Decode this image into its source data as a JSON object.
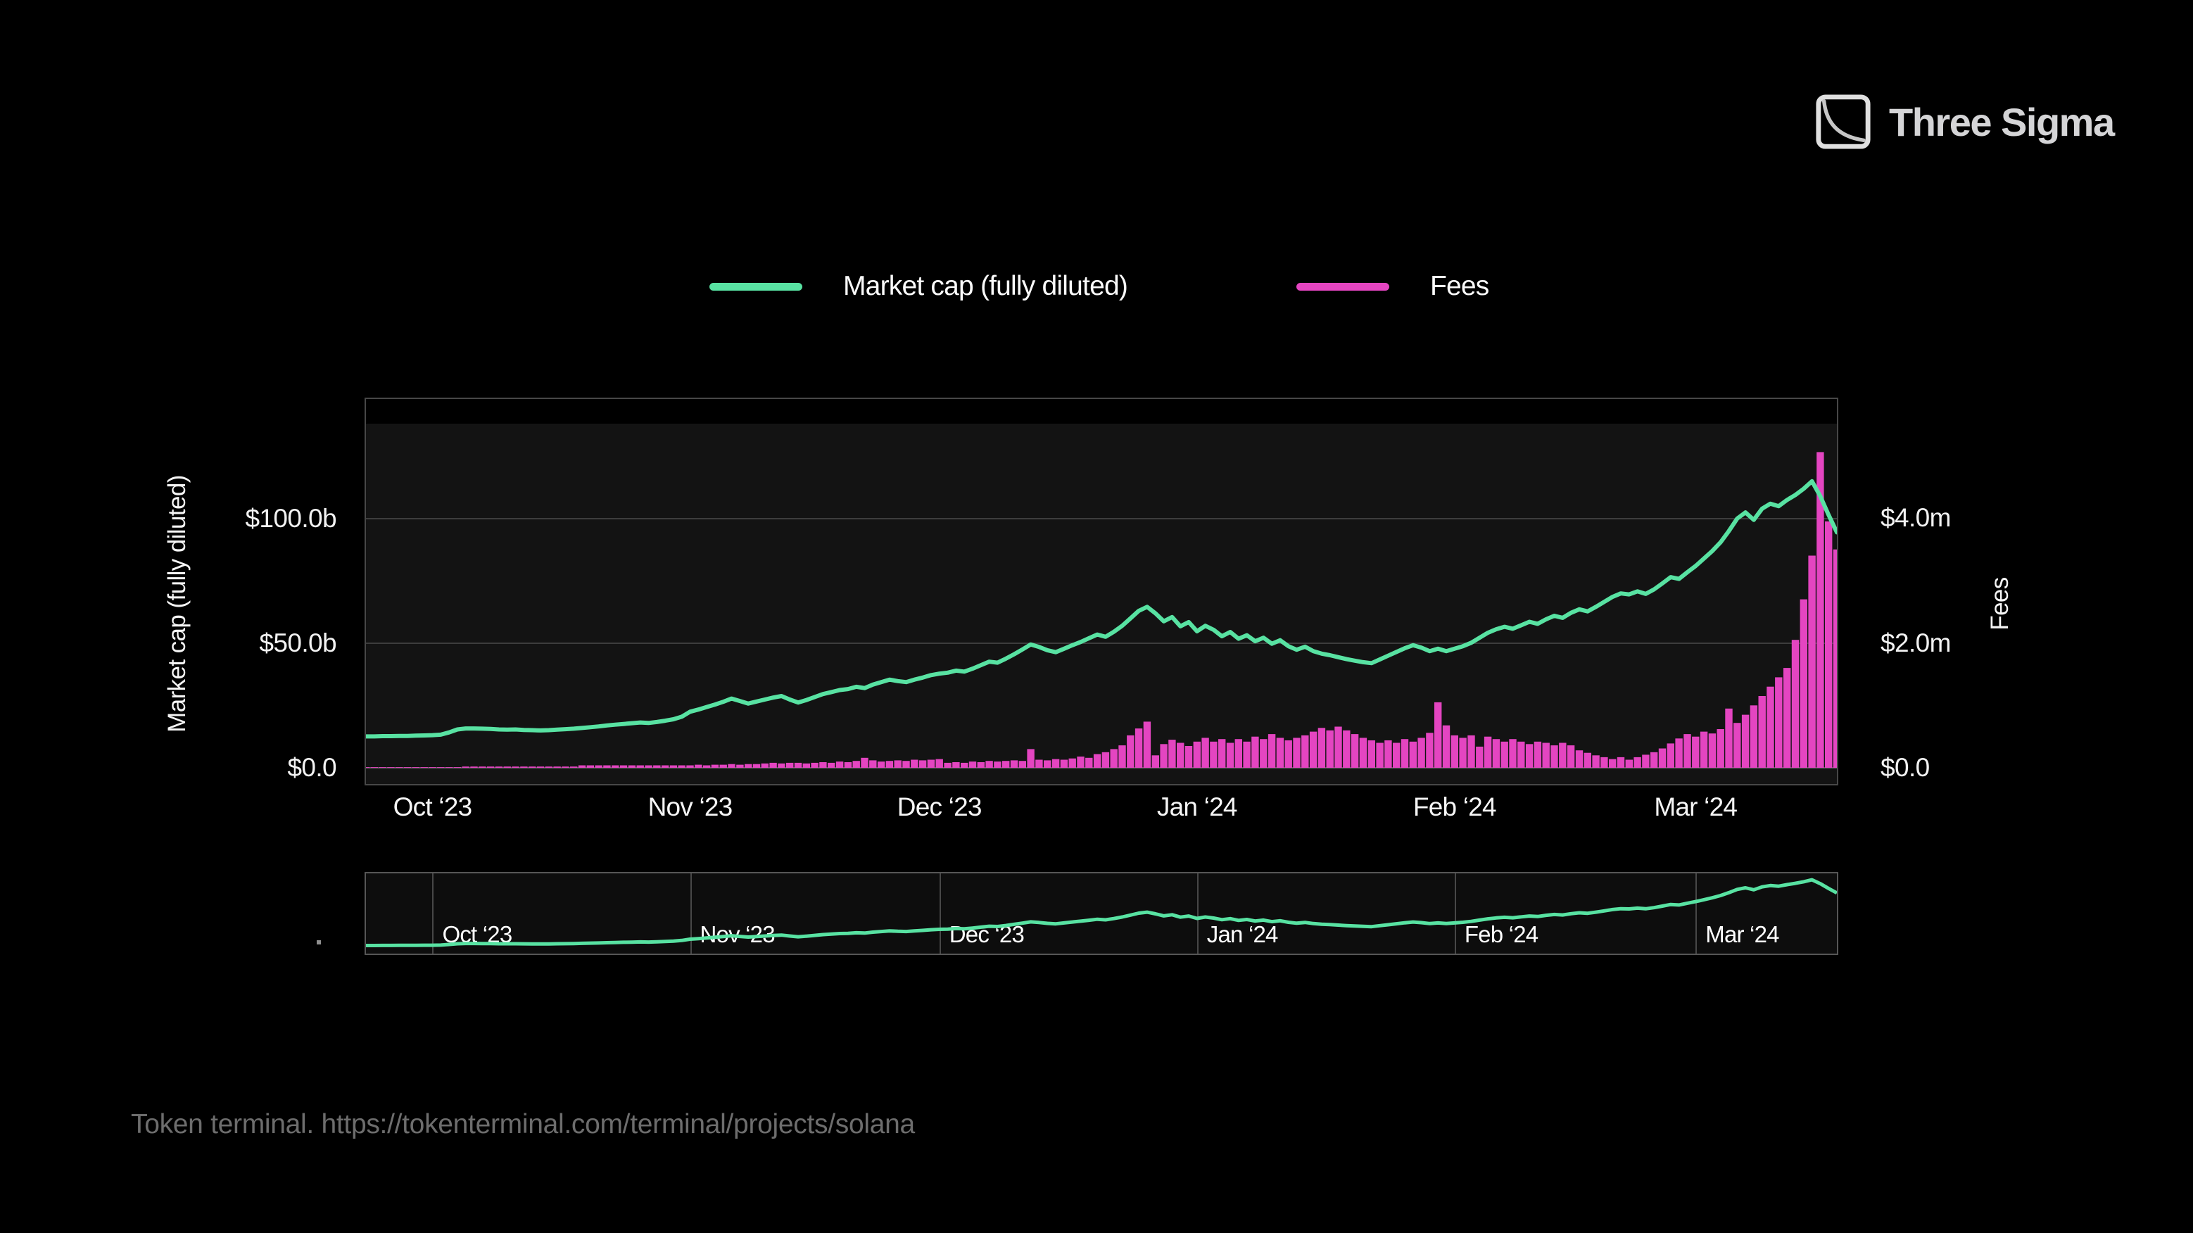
{
  "logo": {
    "text": "Three Sigma"
  },
  "legend": {
    "items": [
      {
        "label": "Market cap (fully diluted)",
        "color": "#58E2A2"
      },
      {
        "label": "Fees",
        "color": "#E445C1"
      }
    ]
  },
  "source": {
    "text": "Token terminal. https://tokenterminal.com/terminal/projects/solana"
  },
  "chart_data": {
    "type": "combo",
    "title": "",
    "grid": "horizontal",
    "legend_position": "top-center",
    "x": {
      "unit": "day",
      "n_points": 178,
      "ticks": [
        {
          "label": "Oct ‘23",
          "day": 8
        },
        {
          "label": "Nov ‘23",
          "day": 39
        },
        {
          "label": "Dec ‘23",
          "day": 69
        },
        {
          "label": "Jan ‘24",
          "day": 100
        },
        {
          "label": "Feb ‘24",
          "day": 131
        },
        {
          "label": "Mar ‘24",
          "day": 160
        }
      ]
    },
    "left_axis": {
      "title": "Market cap (fully diluted)",
      "unit": "USD billions",
      "ylim": [
        0,
        148
      ],
      "ticks": [
        {
          "label": "$0.0",
          "value": 0
        },
        {
          "label": "$50.0b",
          "value": 50
        },
        {
          "label": "$100.0b",
          "value": 100
        }
      ]
    },
    "right_axis": {
      "title": "Fees",
      "unit": "USD millions per day",
      "ylim": [
        0,
        5.91
      ],
      "ticks": [
        {
          "label": "$0.0",
          "value": 0
        },
        {
          "label": "$2.0m",
          "value": 2
        },
        {
          "label": "$4.0m",
          "value": 4
        }
      ]
    },
    "series": [
      {
        "name": "Market cap (fully diluted)",
        "type": "line",
        "axis": "left",
        "color": "#58E2A2",
        "values": [
          12.6,
          12.6,
          12.7,
          12.7,
          12.8,
          12.8,
          12.9,
          13.0,
          13.1,
          13.3,
          14.2,
          15.4,
          15.8,
          15.8,
          15.7,
          15.6,
          15.4,
          15.3,
          15.4,
          15.2,
          15.1,
          15.0,
          15.1,
          15.3,
          15.5,
          15.7,
          16.0,
          16.3,
          16.6,
          17.0,
          17.3,
          17.6,
          17.9,
          18.2,
          18.0,
          18.4,
          18.9,
          19.5,
          20.5,
          22.5,
          23.4,
          24.4,
          25.4,
          26.5,
          27.8,
          26.8,
          25.8,
          26.6,
          27.4,
          28.2,
          28.8,
          27.4,
          26.2,
          27.2,
          28.4,
          29.6,
          30.4,
          31.2,
          31.6,
          32.5,
          32.0,
          33.4,
          34.4,
          35.4,
          34.8,
          34.4,
          35.4,
          36.2,
          37.2,
          37.8,
          38.2,
          39.0,
          38.6,
          39.8,
          41.2,
          42.6,
          42.2,
          43.8,
          45.6,
          47.5,
          49.5,
          48.5,
          47.2,
          46.4,
          47.8,
          49.2,
          50.5,
          52.0,
          53.5,
          52.6,
          54.6,
          57.0,
          60.0,
          63.0,
          64.6,
          62.0,
          58.8,
          60.5,
          56.8,
          58.5,
          54.8,
          57.0,
          55.4,
          52.8,
          54.5,
          51.8,
          53.2,
          50.8,
          52.2,
          49.8,
          51.2,
          48.8,
          47.4,
          48.6,
          46.8,
          45.8,
          45.2,
          44.4,
          43.6,
          43.0,
          42.4,
          42.0,
          43.5,
          45.0,
          46.5,
          48.0,
          49.2,
          48.2,
          46.8,
          47.8,
          46.8,
          47.8,
          48.8,
          50.2,
          52.2,
          54.2,
          55.6,
          56.6,
          55.8,
          57.2,
          58.6,
          57.8,
          59.6,
          61.0,
          60.2,
          62.2,
          63.6,
          62.8,
          64.6,
          66.6,
          68.6,
          70.0,
          69.6,
          70.8,
          69.8,
          71.6,
          74.0,
          76.5,
          75.8,
          78.5,
          81.0,
          84.0,
          87.0,
          90.5,
          95.0,
          100.0,
          102.5,
          99.5,
          104.0,
          106.0,
          105.0,
          107.5,
          109.5,
          112.0,
          115.0,
          109.0,
          101.5,
          94.5
        ]
      },
      {
        "name": "Fees",
        "type": "bar",
        "axis": "right",
        "color": "#E445C1",
        "values": [
          0.01,
          0.01,
          0.01,
          0.01,
          0.01,
          0.01,
          0.01,
          0.01,
          0.01,
          0.01,
          0.01,
          0.01,
          0.02,
          0.02,
          0.02,
          0.02,
          0.02,
          0.02,
          0.02,
          0.02,
          0.02,
          0.02,
          0.02,
          0.02,
          0.02,
          0.02,
          0.04,
          0.04,
          0.04,
          0.04,
          0.04,
          0.04,
          0.04,
          0.04,
          0.04,
          0.04,
          0.04,
          0.04,
          0.04,
          0.04,
          0.05,
          0.04,
          0.05,
          0.05,
          0.06,
          0.05,
          0.06,
          0.06,
          0.07,
          0.08,
          0.07,
          0.08,
          0.08,
          0.07,
          0.08,
          0.09,
          0.08,
          0.1,
          0.09,
          0.11,
          0.16,
          0.12,
          0.1,
          0.11,
          0.12,
          0.11,
          0.13,
          0.12,
          0.13,
          0.14,
          0.08,
          0.09,
          0.08,
          0.1,
          0.09,
          0.11,
          0.1,
          0.11,
          0.12,
          0.11,
          0.3,
          0.13,
          0.12,
          0.14,
          0.13,
          0.15,
          0.18,
          0.16,
          0.22,
          0.25,
          0.3,
          0.36,
          0.52,
          0.63,
          0.74,
          0.2,
          0.38,
          0.45,
          0.4,
          0.35,
          0.42,
          0.48,
          0.42,
          0.46,
          0.4,
          0.46,
          0.42,
          0.5,
          0.46,
          0.54,
          0.48,
          0.44,
          0.48,
          0.52,
          0.58,
          0.64,
          0.6,
          0.66,
          0.6,
          0.54,
          0.48,
          0.44,
          0.4,
          0.44,
          0.4,
          0.46,
          0.42,
          0.48,
          0.56,
          1.05,
          0.68,
          0.52,
          0.48,
          0.52,
          0.34,
          0.5,
          0.46,
          0.42,
          0.46,
          0.42,
          0.38,
          0.42,
          0.4,
          0.36,
          0.4,
          0.36,
          0.28,
          0.24,
          0.2,
          0.17,
          0.14,
          0.17,
          0.13,
          0.17,
          0.21,
          0.25,
          0.31,
          0.39,
          0.47,
          0.54,
          0.5,
          0.58,
          0.55,
          0.62,
          0.95,
          0.72,
          0.85,
          1.0,
          1.15,
          1.3,
          1.45,
          1.6,
          2.05,
          2.7,
          3.4,
          5.06,
          3.95,
          3.5
        ]
      }
    ],
    "mini_chart": {
      "series": "Market cap (fully diluted)",
      "ylim": [
        0,
        125
      ]
    }
  }
}
